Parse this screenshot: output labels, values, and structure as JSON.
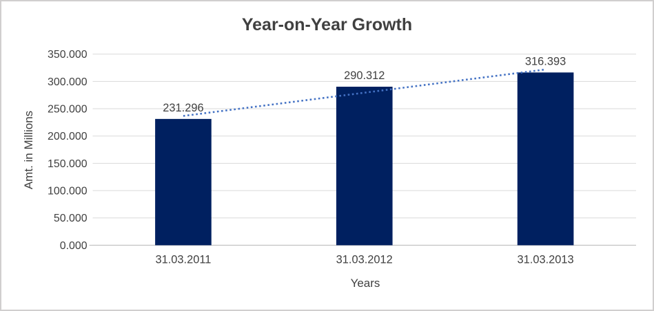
{
  "chart_data": {
    "type": "bar",
    "title": "Year-on-Year Growth",
    "xlabel": "Years",
    "ylabel": "Amt. in Millions",
    "categories": [
      "31.03.2011",
      "31.03.2012",
      "31.03.2013"
    ],
    "values": [
      231.296,
      290.312,
      316.393
    ],
    "value_labels": [
      "231.296",
      "290.312",
      "316.393"
    ],
    "ylim": [
      0,
      350
    ],
    "y_tick_step": 50,
    "y_ticks": [
      0,
      50,
      100,
      150,
      200,
      250,
      300,
      350
    ],
    "y_tick_labels": [
      "0.000",
      "50.000",
      "100.000",
      "150.000",
      "200.000",
      "250.000",
      "300.000",
      "350.000"
    ],
    "grid": true,
    "legend": "none",
    "trendline": {
      "type": "linear",
      "style": "dotted"
    },
    "colors": {
      "bar": "#002060",
      "trendline": "#4472C4",
      "gridline": "#D9D9D9",
      "axis_line": "#BFBFBF",
      "text": "#404040",
      "border": "#D0CECE",
      "background": "#FFFFFF"
    }
  }
}
